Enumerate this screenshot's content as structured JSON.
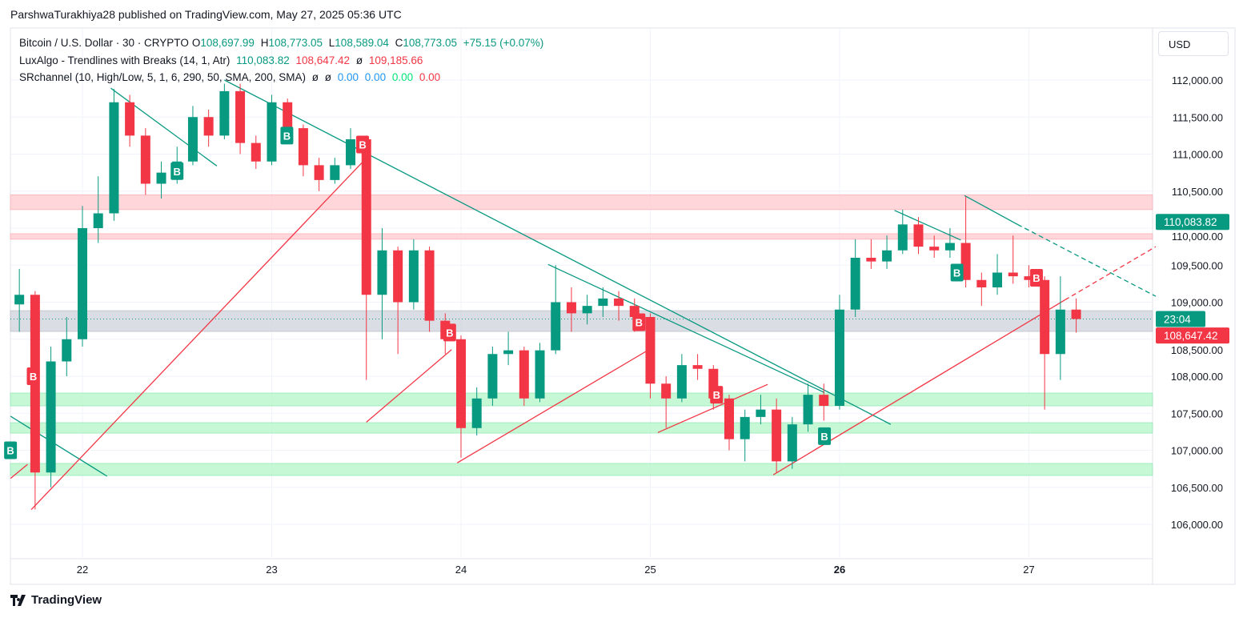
{
  "publisher": "ParshwaTurakhiya28 published on TradingView.com, May 27, 2025 05:36 UTC",
  "legend": {
    "symbol": "Bitcoin / U.S. Dollar · 30 · CRYPTO",
    "o_label": "O",
    "o": "108,697.99",
    "h_label": "H",
    "h": "108,773.05",
    "l_label": "L",
    "l": "108,589.04",
    "c_label": "C",
    "c": "108,773.05",
    "change": "+75.15 (+0.07%)",
    "luxalgo": "LuxAlgo - Trendlines with Breaks (14, 1, Atr)",
    "lux_v1": "110,083.82",
    "lux_v2": "108,647.42",
    "lux_sep": "ø",
    "lux_v3": "109,185.66",
    "sr": "SRchannel (10, High/Low, 5, 1, 6, 290, 50, SMA, 200, SMA)",
    "sr_e1": "ø",
    "sr_e2": "ø",
    "sr_v1": "0.00",
    "sr_v2": "0.00",
    "sr_v3": "0.00",
    "sr_v4": "0.00"
  },
  "currency_button": "USD",
  "footer_logo": "TradingView",
  "colors": {
    "up": "#089981",
    "down": "#f23645",
    "resistance_zone": "#ffcdd2",
    "support_zone": "#b9f6ca",
    "neutral_zone": "#d1d4dc",
    "grid": "#f0f3fa"
  },
  "chart_data": {
    "type": "candlestick",
    "ylim": [
      105500,
      112800
    ],
    "y_ticks": [
      "106,000.00",
      "106,500.00",
      "107,000.00",
      "107,500.00",
      "108,000.00",
      "108,500.00",
      "109,000.00",
      "109,500.00",
      "110,000.00",
      "110,500.00",
      "111,000.00",
      "111,500.00",
      "112,000.00"
    ],
    "y_tick_values": [
      106000,
      106500,
      107000,
      107500,
      108000,
      108500,
      109000,
      109500,
      110000,
      110500,
      111000,
      111500,
      112000
    ],
    "x_ticks": [
      "22",
      "23",
      "24",
      "25",
      "26",
      "27"
    ],
    "x_tick_days": [
      22,
      23,
      24,
      25,
      26,
      27
    ],
    "xlim_days": [
      21.6,
      27.65
    ],
    "grid": true,
    "first_candle_day": 21.625,
    "candle_days": 0.08333,
    "candles_ohlc": [
      [
        108970,
        109450,
        108600,
        109100
      ],
      [
        109100,
        109150,
        106200,
        106700
      ],
      [
        106700,
        108400,
        106500,
        108200
      ],
      [
        108200,
        108800,
        108000,
        108500
      ],
      [
        108500,
        110300,
        108400,
        110000
      ],
      [
        110000,
        110700,
        109800,
        110200
      ],
      [
        110200,
        111880,
        110100,
        111700
      ],
      [
        111700,
        111800,
        111100,
        111250
      ],
      [
        111250,
        111350,
        110450,
        110600
      ],
      [
        110600,
        110900,
        110400,
        110750
      ],
      [
        110750,
        111100,
        110600,
        110900
      ],
      [
        110900,
        111650,
        110850,
        111500
      ],
      [
        111500,
        111600,
        111100,
        111250
      ],
      [
        111250,
        111950,
        111200,
        111850
      ],
      [
        111850,
        111950,
        111000,
        111150
      ],
      [
        111150,
        111250,
        110800,
        110900
      ],
      [
        110900,
        111800,
        110850,
        111700
      ],
      [
        111700,
        111750,
        111250,
        111350
      ],
      [
        111350,
        111400,
        110700,
        110850
      ],
      [
        110850,
        110950,
        110500,
        110650
      ],
      [
        110650,
        110950,
        110600,
        110850
      ],
      [
        110850,
        111350,
        110800,
        111200
      ],
      [
        111200,
        111250,
        107950,
        109100
      ],
      [
        109100,
        110000,
        108500,
        109700
      ],
      [
        109700,
        109750,
        108300,
        109000
      ],
      [
        109000,
        109850,
        108900,
        109700
      ],
      [
        109700,
        109750,
        108600,
        108750
      ],
      [
        108750,
        108850,
        108300,
        108500
      ],
      [
        108500,
        108550,
        106900,
        107300
      ],
      [
        107300,
        107850,
        107200,
        107700
      ],
      [
        107700,
        108400,
        107600,
        108300
      ],
      [
        108300,
        108600,
        108150,
        108350
      ],
      [
        108350,
        108400,
        107600,
        107700
      ],
      [
        107700,
        108450,
        107650,
        108350
      ],
      [
        108350,
        109500,
        108300,
        109000
      ],
      [
        109000,
        109200,
        108600,
        108850
      ],
      [
        108850,
        109100,
        108700,
        108950
      ],
      [
        108950,
        109200,
        108800,
        109050
      ],
      [
        109050,
        109150,
        108750,
        108950
      ],
      [
        108950,
        109050,
        108600,
        108800
      ],
      [
        108800,
        108850,
        107700,
        107900
      ],
      [
        107900,
        108000,
        107300,
        107700
      ],
      [
        107700,
        108300,
        107650,
        108150
      ],
      [
        108150,
        108300,
        107950,
        108100
      ],
      [
        108100,
        108150,
        107550,
        107700
      ],
      [
        107700,
        107750,
        107000,
        107150
      ],
      [
        107150,
        107550,
        106850,
        107450
      ],
      [
        107450,
        107750,
        107350,
        107550
      ],
      [
        107550,
        107700,
        106700,
        106850
      ],
      [
        106850,
        107450,
        106750,
        107350
      ],
      [
        107350,
        107900,
        107250,
        107750
      ],
      [
        107750,
        107900,
        107400,
        107600
      ],
      [
        107600,
        109100,
        107550,
        108900
      ],
      [
        108900,
        109850,
        108800,
        109600
      ],
      [
        109600,
        109850,
        109450,
        109550
      ],
      [
        109550,
        109900,
        109450,
        109700
      ],
      [
        109700,
        110250,
        109650,
        110050
      ],
      [
        110050,
        110150,
        109650,
        109750
      ],
      [
        109750,
        109900,
        109600,
        109700
      ],
      [
        109700,
        110000,
        109600,
        109800
      ],
      [
        109800,
        110430,
        109200,
        109300
      ],
      [
        109300,
        109400,
        108950,
        109200
      ],
      [
        109200,
        109650,
        109100,
        109400
      ],
      [
        109400,
        109900,
        109250,
        109350
      ],
      [
        109350,
        109500,
        109200,
        109300
      ],
      [
        109300,
        109350,
        107550,
        108300
      ],
      [
        108300,
        109350,
        107950,
        108900
      ],
      [
        108900,
        109050,
        108589,
        108773
      ]
    ],
    "zones": [
      {
        "kind": "resistance",
        "from": 110250,
        "to": 110450
      },
      {
        "kind": "resistance",
        "from": 109850,
        "to": 109925
      },
      {
        "kind": "neutral",
        "from": 108605,
        "to": 108886
      },
      {
        "kind": "support",
        "from": 107600,
        "to": 107773
      },
      {
        "kind": "support",
        "from": 107232,
        "to": 107373
      },
      {
        "kind": "support",
        "from": 106660,
        "to": 106822
      }
    ],
    "trendlines_down": [
      [
        [
          21.62,
          107460
        ],
        [
          22.13,
          106650
        ]
      ],
      [
        [
          22.15,
          111890
        ],
        [
          22.71,
          110840
        ]
      ],
      [
        [
          22.75,
          112000
        ],
        [
          26.27,
          107350
        ]
      ],
      [
        [
          24.46,
          109510
        ],
        [
          25.92,
          107780
        ]
      ],
      [
        [
          26.29,
          110240
        ],
        [
          26.64,
          109840
        ]
      ],
      [
        [
          26.66,
          110440
        ],
        [
          26.94,
          110050
        ]
      ]
    ],
    "trendlines_up": [
      [
        [
          21.62,
          106620
        ],
        [
          21.71,
          106810
        ]
      ],
      [
        [
          21.73,
          106200
        ],
        [
          23.49,
          110920
        ]
      ],
      [
        [
          23.5,
          107380
        ],
        [
          23.95,
          108360
        ]
      ],
      [
        [
          23.98,
          106830
        ],
        [
          25.02,
          108400
        ]
      ],
      [
        [
          25.04,
          107240
        ],
        [
          25.62,
          107890
        ]
      ],
      [
        [
          25.65,
          106670
        ],
        [
          27.19,
          109030
        ]
      ]
    ],
    "extension_down": [
      [
        26.94,
        110050
      ],
      [
        27.67,
        109080
      ]
    ],
    "extension_up": [
      [
        27.19,
        109030
      ],
      [
        27.67,
        109750
      ]
    ],
    "break_labels": [
      {
        "text": "B",
        "kind": "up",
        "day": 21.62,
        "price": 107000
      },
      {
        "text": "B",
        "kind": "up",
        "day": 22.5,
        "price": 110770
      },
      {
        "text": "B",
        "kind": "up",
        "day": 23.08,
        "price": 111250
      },
      {
        "text": "B",
        "kind": "up",
        "day": 25.92,
        "price": 107190
      },
      {
        "text": "B",
        "kind": "up",
        "day": 26.62,
        "price": 109400
      },
      {
        "text": "B",
        "kind": "down",
        "day": 21.74,
        "price": 108000
      },
      {
        "text": "B",
        "kind": "down",
        "day": 23.48,
        "price": 111130
      },
      {
        "text": "B",
        "kind": "down",
        "day": 23.94,
        "price": 108590
      },
      {
        "text": "B",
        "kind": "down",
        "day": 24.94,
        "price": 108730
      },
      {
        "text": "B",
        "kind": "down",
        "day": 25.35,
        "price": 107750
      },
      {
        "text": "B",
        "kind": "down",
        "day": 27.04,
        "price": 109330
      }
    ],
    "price_labels": [
      {
        "text": "110,083.82",
        "price": 110083.82,
        "kind": "up"
      },
      {
        "text": "23:04",
        "price": 108773.05,
        "kind": "up"
      },
      {
        "text": "108,647.42",
        "price": 108550,
        "kind": "down"
      }
    ],
    "current_price": 108773.05
  }
}
